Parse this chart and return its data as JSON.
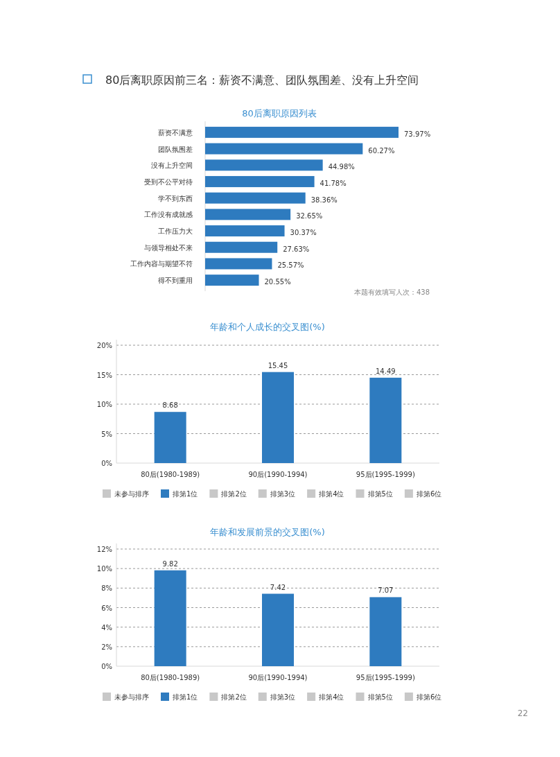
{
  "chart_data": [
    {
      "type": "bar",
      "orientation": "horizontal",
      "title": "80后离职原因列表",
      "categories": [
        "薪资不满意",
        "团队氛围差",
        "没有上升空间",
        "受到不公平对待",
        "学不到东西",
        "工作没有成就感",
        "工作压力大",
        "与领导相处不来",
        "工作内容与期望不符",
        "得不到重用"
      ],
      "values": [
        73.97,
        60.27,
        44.98,
        41.78,
        38.36,
        32.65,
        30.37,
        27.63,
        25.57,
        20.55
      ],
      "value_labels": [
        "73.97%",
        "60.27%",
        "44.98%",
        "41.78%",
        "38.36%",
        "32.65%",
        "30.37%",
        "27.63%",
        "25.57%",
        "20.55%"
      ],
      "color": "#2e7bbf",
      "annotations": [
        "80后离职原因前三名：薪资不满意、团队氛围差、没有上升空间",
        "本题有效填写人次：438"
      ]
    },
    {
      "type": "bar",
      "title": "年龄和个人成长的交叉图(%)",
      "categories": [
        "80后(1980-1989)",
        "90后(1990-1994)",
        "95后(1995-1999)"
      ],
      "series": [
        {
          "name": "未参与排序",
          "color": "#c8c8c8",
          "values": [
            null,
            null,
            null
          ]
        },
        {
          "name": "排第1位",
          "color": "#2e7bbf",
          "values": [
            8.68,
            15.45,
            14.49
          ]
        },
        {
          "name": "排第2位",
          "color": "#c8c8c8",
          "values": [
            null,
            null,
            null
          ]
        },
        {
          "name": "排第3位",
          "color": "#c8c8c8",
          "values": [
            null,
            null,
            null
          ]
        },
        {
          "name": "排第4位",
          "color": "#c8c8c8",
          "values": [
            null,
            null,
            null
          ]
        },
        {
          "name": "排第5位",
          "color": "#c8c8c8",
          "values": [
            null,
            null,
            null
          ]
        },
        {
          "name": "排第6位",
          "color": "#c8c8c8",
          "values": [
            null,
            null,
            null
          ]
        }
      ],
      "ylim": [
        0,
        20
      ],
      "yticks": [
        {
          "value": 0,
          "label": "0%"
        },
        {
          "value": 5,
          "label": "5%"
        },
        {
          "value": 10,
          "label": "10%"
        },
        {
          "value": 15,
          "label": "15%"
        },
        {
          "value": 20,
          "label": "20%"
        }
      ],
      "grid": "y",
      "line_style": "dashed",
      "legend": "bottom",
      "data_labels": true
    },
    {
      "type": "bar",
      "title": "年龄和发展前景的交叉图(%)",
      "categories": [
        "80后(1980-1989)",
        "90后(1990-1994)",
        "95后(1995-1999)"
      ],
      "series": [
        {
          "name": "未参与排序",
          "color": "#c8c8c8",
          "values": [
            null,
            null,
            null
          ]
        },
        {
          "name": "排第1位",
          "color": "#2e7bbf",
          "values": [
            9.82,
            7.42,
            7.07
          ]
        },
        {
          "name": "排第2位",
          "color": "#c8c8c8",
          "values": [
            null,
            null,
            null
          ]
        },
        {
          "name": "排第3位",
          "color": "#c8c8c8",
          "values": [
            null,
            null,
            null
          ]
        },
        {
          "name": "排第4位",
          "color": "#c8c8c8",
          "values": [
            null,
            null,
            null
          ]
        },
        {
          "name": "排第5位",
          "color": "#c8c8c8",
          "values": [
            null,
            null,
            null
          ]
        },
        {
          "name": "排第6位",
          "color": "#c8c8c8",
          "values": [
            null,
            null,
            null
          ]
        }
      ],
      "ylim": [
        0,
        12
      ],
      "yticks": [
        {
          "value": 0,
          "label": "0%"
        },
        {
          "value": 2,
          "label": "2%"
        },
        {
          "value": 4,
          "label": "4%"
        },
        {
          "value": 6,
          "label": "6%"
        },
        {
          "value": 8,
          "label": "8%"
        },
        {
          "value": 10,
          "label": "10%"
        },
        {
          "value": 12,
          "label": "12%"
        }
      ],
      "grid": "y",
      "line_style": "dashed",
      "legend": "bottom",
      "data_labels": true,
      "annotations": [
        "22"
      ]
    }
  ]
}
